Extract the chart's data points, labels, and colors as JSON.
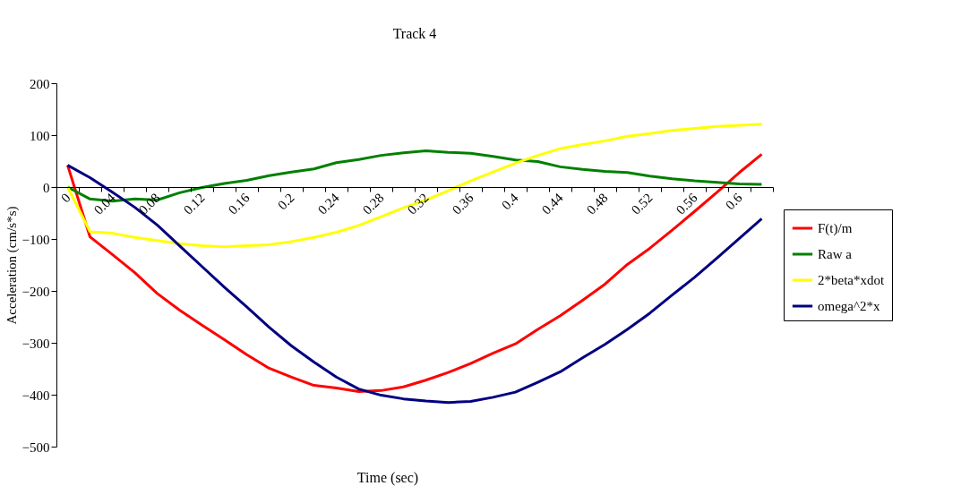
{
  "chart_data": {
    "type": "line",
    "title": "Track 4",
    "xlabel": "Time (sec)",
    "ylabel": "Acceleration (cm/s*s)",
    "categories": [
      "0",
      null,
      "0.04",
      null,
      "0.08",
      null,
      "0.12",
      null,
      "0.16",
      null,
      "0.2",
      null,
      "0.24",
      null,
      "0.28",
      null,
      "0.32",
      null,
      "0.36",
      null,
      "0.4",
      null,
      "0.44",
      null,
      "0.48",
      null,
      "0.52",
      null,
      "0.56",
      null,
      "0.6",
      null
    ],
    "series": [
      {
        "name": "F(t)/m",
        "color": "#ff0000",
        "values": [
          42,
          -96,
          -130,
          -165,
          -205,
          -237,
          -266,
          -294,
          -323,
          -349,
          -366,
          -382,
          -387,
          -394,
          -392,
          -385,
          -372,
          -357,
          -340,
          -320,
          -302,
          -274,
          -248,
          -218,
          -187,
          -149,
          -118,
          -83,
          -47,
          -10,
          28,
          63
        ]
      },
      {
        "name": "Raw a",
        "color": "#008000",
        "values": [
          0,
          -23,
          -27,
          -23,
          -25,
          -11,
          -1,
          7,
          13,
          22,
          29,
          35,
          47,
          53,
          61,
          66,
          70,
          67,
          65,
          59,
          52,
          49,
          39,
          34,
          30,
          28,
          21,
          16,
          12,
          9,
          6,
          5
        ]
      },
      {
        "name": "2*beta*xdot",
        "color": "#ffff00",
        "values": [
          0,
          -86,
          -89,
          -97,
          -103,
          -109,
          -113,
          -115,
          -113,
          -111,
          -105,
          -97,
          -87,
          -74,
          -57,
          -40,
          -25,
          -7,
          12,
          29,
          46,
          61,
          74,
          82,
          89,
          98,
          103,
          109,
          113,
          117,
          119,
          121
        ]
      },
      {
        "name": "omega^2*x",
        "color": "#000080",
        "values": [
          42,
          18,
          -10,
          -39,
          -73,
          -113,
          -153,
          -193,
          -231,
          -270,
          -306,
          -337,
          -366,
          -389,
          -401,
          -408,
          -412,
          -415,
          -413,
          -405,
          -395,
          -376,
          -356,
          -329,
          -303,
          -274,
          -243,
          -208,
          -174,
          -137,
          -99,
          -61
        ]
      }
    ],
    "ylim": [
      -500,
      200
    ],
    "yticks": [
      -500,
      -400,
      -300,
      -200,
      -100,
      0,
      100,
      200
    ],
    "grid": false,
    "legend": "right",
    "marker": "none",
    "line_style": "solid"
  }
}
